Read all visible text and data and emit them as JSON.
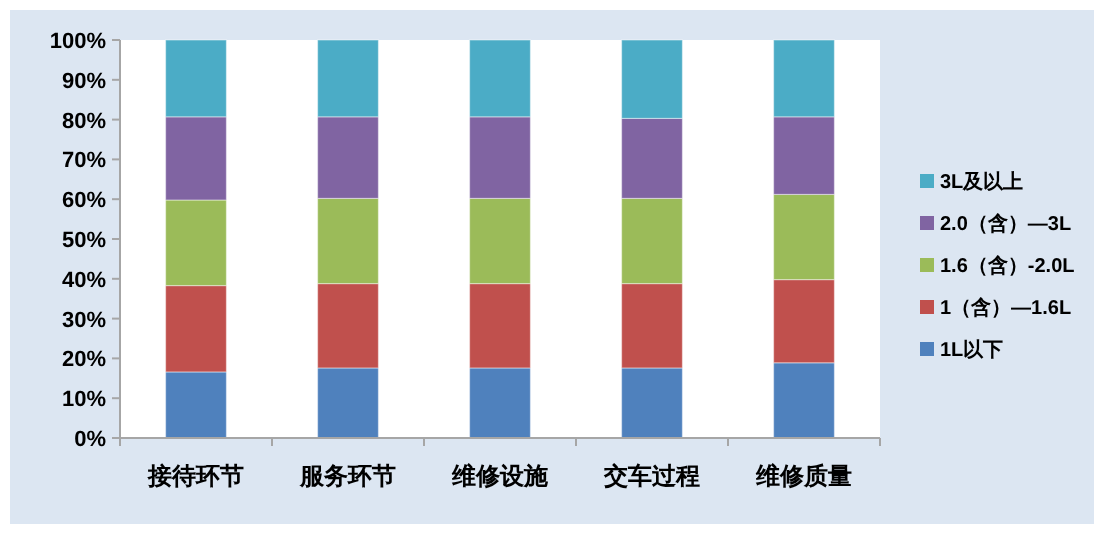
{
  "chart_data": {
    "type": "bar",
    "stacked": true,
    "categories": [
      "接待环节",
      "服务环节",
      "维修设施",
      "交车过程",
      "维修质量"
    ],
    "series": [
      {
        "name": "1L以下",
        "color": "#4f81bd",
        "values": [
          16.6,
          17.6,
          17.6,
          17.6,
          18.9
        ]
      },
      {
        "name": "1（含）—1.6L",
        "color": "#c0504d",
        "values": [
          21.7,
          21.2,
          21.2,
          21.2,
          20.9
        ]
      },
      {
        "name": "1.6（含）-2.0L",
        "color": "#9bbb59",
        "values": [
          21.5,
          21.4,
          21.4,
          21.4,
          21.4
        ]
      },
      {
        "name": "2.0（含）—3L",
        "color": "#8064a2",
        "values": [
          20.9,
          20.5,
          20.5,
          20.1,
          19.5
        ]
      },
      {
        "name": "3L及以上",
        "color": "#4bacc6",
        "values": [
          19.3,
          19.3,
          19.3,
          19.7,
          19.3
        ]
      }
    ],
    "ylim": [
      0,
      100
    ],
    "yticks": [
      {
        "value": 0,
        "label": "0%"
      },
      {
        "value": 10,
        "label": "10%"
      },
      {
        "value": 20,
        "label": "20%"
      },
      {
        "value": 30,
        "label": "30%"
      },
      {
        "value": 40,
        "label": "40%"
      },
      {
        "value": 50,
        "label": "50%"
      },
      {
        "value": 60,
        "label": "60%"
      },
      {
        "value": 70,
        "label": "70%"
      },
      {
        "value": 80,
        "label": "80%"
      },
      {
        "value": 90,
        "label": "90%"
      },
      {
        "value": 100,
        "label": "100%"
      }
    ],
    "legend": "right",
    "grid": false
  }
}
